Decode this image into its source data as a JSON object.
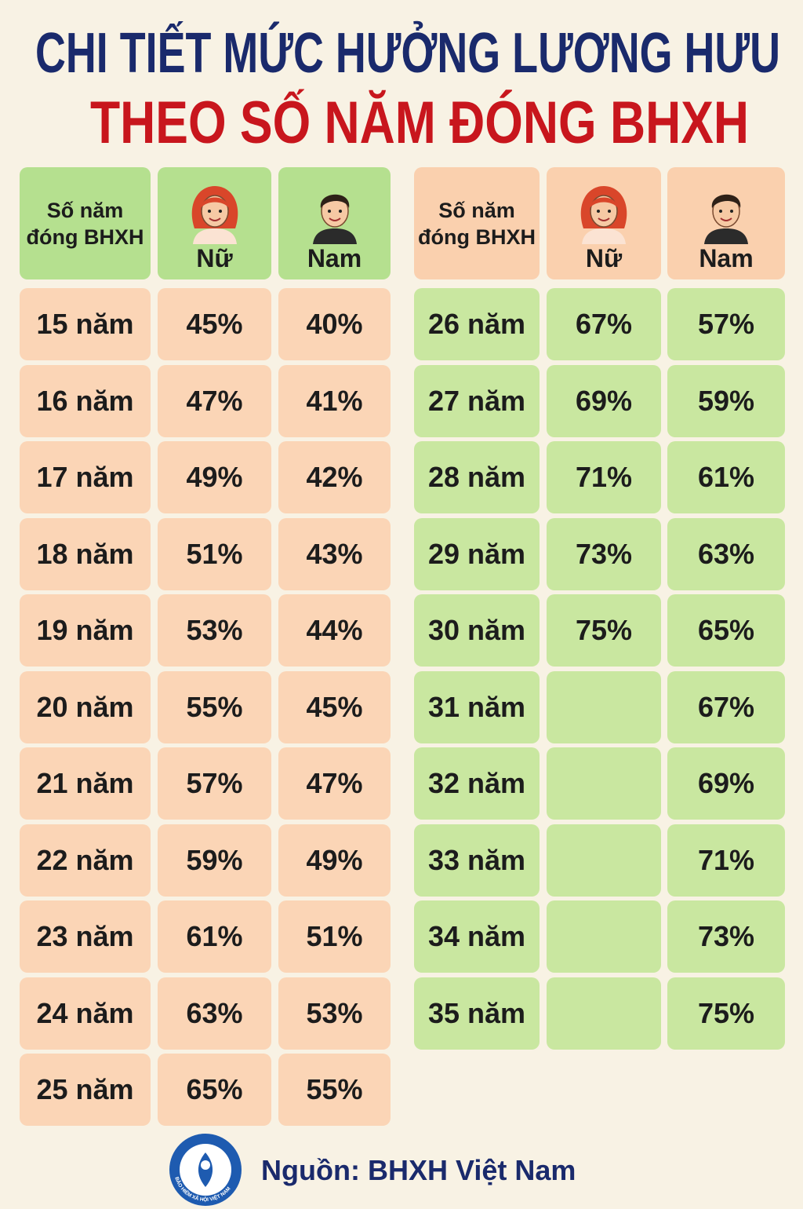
{
  "title": {
    "line1": "CHI TIẾT MỨC HƯỞNG LƯƠNG HƯU",
    "line2": "THEO SỐ NĂM ĐÓNG BHXH"
  },
  "tables": [
    {
      "header": {
        "years": [
          "Số năm",
          "đóng BHXH"
        ],
        "female": "Nữ",
        "male": "Nam"
      },
      "rows": [
        [
          "15 năm",
          "45%",
          "40%"
        ],
        [
          "16 năm",
          "47%",
          "41%"
        ],
        [
          "17 năm",
          "49%",
          "42%"
        ],
        [
          "18 năm",
          "51%",
          "43%"
        ],
        [
          "19 năm",
          "53%",
          "44%"
        ],
        [
          "20 năm",
          "55%",
          "45%"
        ],
        [
          "21 năm",
          "57%",
          "47%"
        ],
        [
          "22 năm",
          "59%",
          "49%"
        ],
        [
          "23 năm",
          "61%",
          "51%"
        ],
        [
          "24 năm",
          "63%",
          "53%"
        ],
        [
          "25 năm",
          "65%",
          "55%"
        ]
      ]
    },
    {
      "header": {
        "years": [
          "Số năm",
          "đóng BHXH"
        ],
        "female": "Nữ",
        "male": "Nam"
      },
      "rows": [
        [
          "26 năm",
          "67%",
          "57%"
        ],
        [
          "27 năm",
          "69%",
          "59%"
        ],
        [
          "28 năm",
          "71%",
          "61%"
        ],
        [
          "29 năm",
          "73%",
          "63%"
        ],
        [
          "30 năm",
          "75%",
          "65%"
        ],
        [
          "31 năm",
          null,
          "67%"
        ],
        [
          "32 năm",
          null,
          "69%"
        ],
        [
          "33 năm",
          null,
          "71%"
        ],
        [
          "34 năm",
          null,
          "73%"
        ],
        [
          "35 năm",
          null,
          "75%"
        ]
      ]
    }
  ],
  "footer": {
    "logo_text": "BẢO HIỂM XÃ HỘI VIỆT NAM",
    "source": "Nguồn: BHXH Việt Nam"
  }
}
